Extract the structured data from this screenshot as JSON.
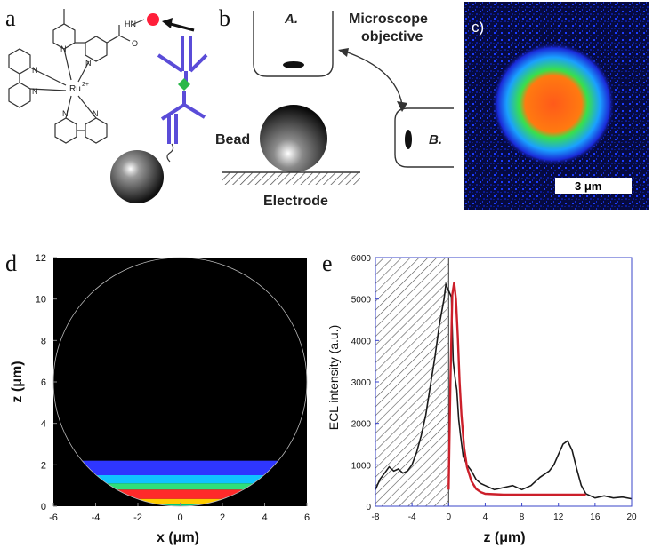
{
  "panels": {
    "a": "a",
    "b": "b",
    "c": "c)",
    "d": "d",
    "e": "e"
  },
  "panel_a": {
    "atoms": [
      "N",
      "N",
      "N",
      "N",
      "N",
      "N",
      "Ru",
      "2+"
    ],
    "amide": [
      "HN",
      "O"
    ]
  },
  "panel_b": {
    "A_label": "A.",
    "B_label": "B.",
    "objective_label": [
      "Microscope",
      "objective"
    ],
    "bead_label": "Bead",
    "electrode_label": "Electrode"
  },
  "panel_c": {
    "scalebar": "3 μm"
  },
  "chart_data": [
    {
      "type": "heatmap",
      "panel": "d",
      "xlabel": "x (μm)",
      "ylabel": "z (μm)",
      "xlim": [
        -6,
        6
      ],
      "ylim": [
        0,
        12
      ],
      "xticks": [
        -6,
        -4,
        -2,
        0,
        2,
        4,
        6
      ],
      "yticks": [
        0,
        2,
        4,
        6,
        8,
        10,
        12
      ],
      "circle": {
        "cx": 0,
        "cz": 6,
        "r": 6
      },
      "bands": [
        {
          "z0": 1.5,
          "z1": 2.2,
          "color": "#2e36ff"
        },
        {
          "z0": 1.1,
          "z1": 1.5,
          "color": "#10c4ff"
        },
        {
          "z0": 0.8,
          "z1": 1.1,
          "color": "#2fe07a"
        },
        {
          "z0": 0.35,
          "z1": 0.8,
          "color": "#ff2a2a"
        },
        {
          "z0": 0.1,
          "z1": 0.35,
          "color": "#ffcc00"
        },
        {
          "z0": 0.0,
          "z1": 0.1,
          "color": "#00c47a"
        }
      ]
    },
    {
      "type": "line",
      "panel": "e",
      "xlabel": "z (μm)",
      "ylabel": "ECL intensity (a.u.)",
      "xlim": [
        -8,
        20
      ],
      "ylim": [
        0,
        6000
      ],
      "xticks": [
        -8,
        -4,
        0,
        4,
        8,
        12,
        16,
        20
      ],
      "yticks": [
        0,
        1000,
        2000,
        3000,
        4000,
        5000,
        6000
      ],
      "hatched_region": [
        -8,
        0
      ],
      "series": [
        {
          "color": "#1a1a1a",
          "x": [
            -8,
            -7.5,
            -7,
            -6.5,
            -6,
            -5.5,
            -5,
            -4.5,
            -4,
            -3.5,
            -3,
            -2.5,
            -2,
            -1.5,
            -1,
            -0.5,
            -0.3,
            0,
            0.3,
            0.5,
            0.7,
            0.9,
            1.1,
            1.3,
            1.6,
            2,
            2.5,
            3,
            3.5,
            4,
            5,
            6,
            7,
            8,
            9,
            10,
            11,
            11.5,
            12,
            12.5,
            13,
            13.5,
            14,
            14.5,
            15,
            15.5,
            16,
            17,
            18,
            19,
            20
          ],
          "y": [
            400,
            650,
            800,
            950,
            850,
            900,
            800,
            850,
            1000,
            1300,
            1700,
            2200,
            2900,
            3600,
            4400,
            5000,
            5350,
            5200,
            5050,
            3500,
            3100,
            2800,
            2100,
            1700,
            1200,
            1000,
            850,
            650,
            550,
            500,
            400,
            450,
            500,
            400,
            500,
            700,
            850,
            1000,
            1250,
            1500,
            1580,
            1350,
            900,
            500,
            300,
            250,
            200,
            250,
            200,
            220,
            180
          ]
        },
        {
          "color": "#cc1f2a",
          "x": [
            0,
            0.2,
            0.4,
            0.6,
            0.8,
            1,
            1.2,
            1.4,
            1.7,
            2,
            2.5,
            3,
            3.5,
            4,
            5,
            6,
            8,
            10,
            12,
            14,
            15
          ],
          "y": [
            400,
            3000,
            5100,
            5400,
            5000,
            4100,
            3000,
            2200,
            1400,
            950,
            600,
            420,
            340,
            300,
            290,
            280,
            280,
            280,
            280,
            280,
            280
          ]
        }
      ]
    }
  ]
}
